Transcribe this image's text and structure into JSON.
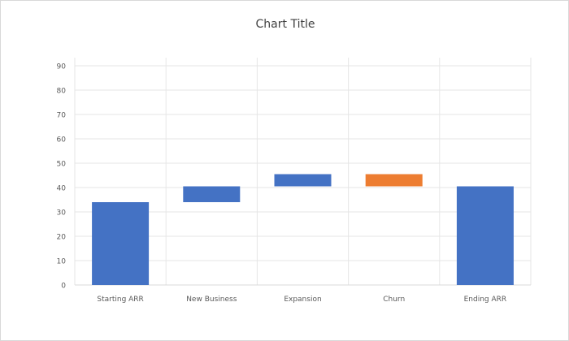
{
  "chart_data": {
    "type": "waterfall",
    "title": "Chart Title",
    "xlabel": "",
    "ylabel": "",
    "ylim": [
      0,
      90
    ],
    "yticks": [
      0,
      10,
      20,
      30,
      40,
      50,
      60,
      70,
      80,
      90
    ],
    "grid": true,
    "categories": [
      "Starting ARR",
      "New Business",
      "Expansion",
      "Churn",
      "Ending ARR"
    ],
    "bars": [
      {
        "category": "Starting ARR",
        "start": 0,
        "end": 34,
        "color": "#4472c4"
      },
      {
        "category": "New Business",
        "start": 34,
        "end": 40.5,
        "color": "#4472c4"
      },
      {
        "category": "Expansion",
        "start": 40.5,
        "end": 45.5,
        "color": "#4472c4"
      },
      {
        "category": "Churn",
        "start": 45.5,
        "end": 40.5,
        "color": "#ed7d31"
      },
      {
        "category": "Ending ARR",
        "start": 0,
        "end": 40.5,
        "color": "#4472c4"
      }
    ],
    "colors": {
      "grid": "#e6e6e6",
      "axis": "#d9d9d9",
      "tick_text": "#595959",
      "title_text": "#404040"
    }
  }
}
